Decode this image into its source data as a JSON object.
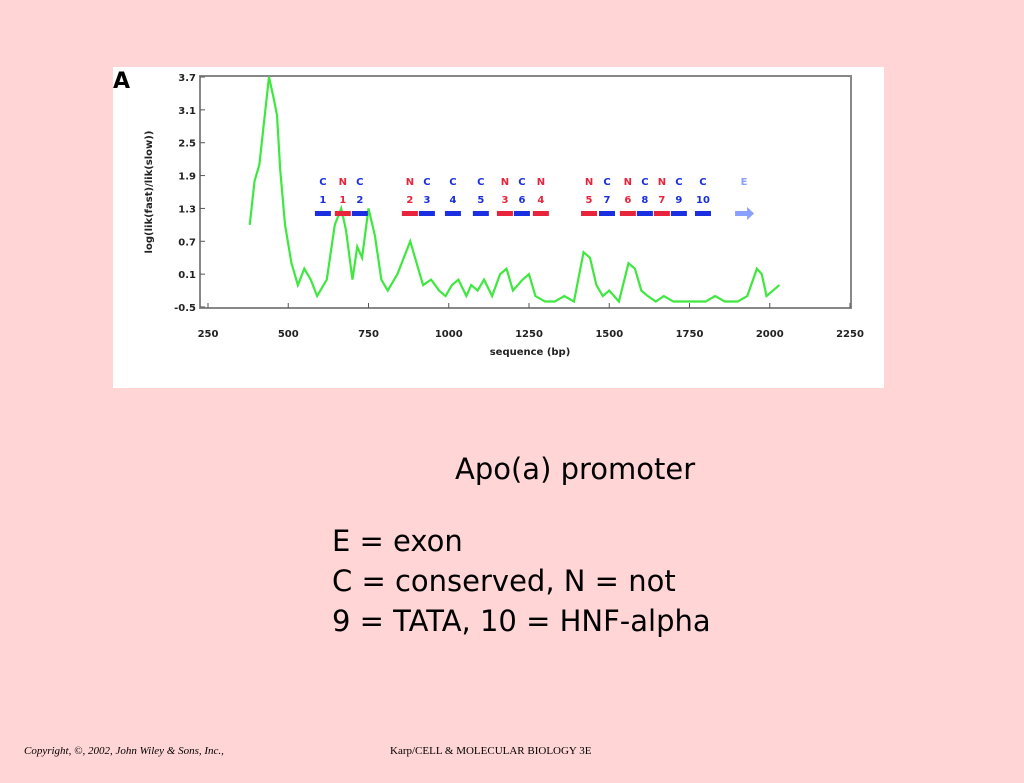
{
  "panel_label": "A",
  "chart_data": {
    "type": "line",
    "xlabel": "sequence (bp)",
    "ylabel": "log(lik(fast)/lik(slow))",
    "xlim": [
      250,
      2250
    ],
    "xticks": [
      250,
      500,
      750,
      1000,
      1250,
      1500,
      1750,
      2000,
      2250
    ],
    "ylim": [
      -0.5,
      3.7
    ],
    "yticks": [
      3.7,
      3.1,
      2.5,
      1.9,
      1.3,
      0.7,
      0.1,
      -0.5
    ],
    "color": "#3ee83e",
    "x": [
      380,
      395,
      410,
      425,
      440,
      455,
      465,
      475,
      490,
      510,
      530,
      550,
      570,
      590,
      620,
      645,
      665,
      680,
      700,
      715,
      730,
      750,
      770,
      790,
      810,
      840,
      860,
      880,
      900,
      920,
      945,
      970,
      990,
      1010,
      1030,
      1055,
      1070,
      1090,
      1110,
      1135,
      1160,
      1180,
      1200,
      1230,
      1250,
      1270,
      1300,
      1330,
      1360,
      1390,
      1420,
      1440,
      1460,
      1480,
      1500,
      1530,
      1560,
      1580,
      1600,
      1620,
      1645,
      1670,
      1700,
      1750,
      1800,
      1830,
      1860,
      1900,
      1930,
      1960,
      1975,
      1990,
      2010,
      2030
    ],
    "values": [
      1.0,
      1.8,
      2.1,
      2.9,
      3.7,
      3.3,
      3.0,
      2.0,
      1.0,
      0.3,
      -0.1,
      0.2,
      0.0,
      -0.3,
      0.0,
      1.0,
      1.3,
      0.9,
      0.0,
      0.6,
      0.4,
      1.3,
      0.8,
      0.0,
      -0.2,
      0.1,
      0.4,
      0.7,
      0.3,
      -0.1,
      0.0,
      -0.2,
      -0.3,
      -0.1,
      0.0,
      -0.3,
      -0.1,
      -0.2,
      0.0,
      -0.3,
      0.1,
      0.2,
      -0.2,
      0.0,
      0.1,
      -0.3,
      -0.4,
      -0.4,
      -0.3,
      -0.4,
      0.5,
      0.4,
      -0.1,
      -0.3,
      -0.2,
      -0.4,
      0.3,
      0.2,
      -0.2,
      -0.3,
      -0.4,
      -0.3,
      -0.4,
      -0.4,
      -0.4,
      -0.3,
      -0.4,
      -0.4,
      -0.3,
      0.2,
      0.1,
      -0.3,
      -0.2,
      -0.1
    ],
    "markers": [
      {
        "letter": "C",
        "number": "1",
        "color": "#1a2fe0",
        "x": 608
      },
      {
        "letter": "N",
        "number": "1",
        "color": "#e8243c",
        "x": 670
      },
      {
        "letter": "C",
        "number": "2",
        "color": "#1a2fe0",
        "x": 723
      },
      {
        "letter": "N",
        "number": "2",
        "color": "#e8243c",
        "x": 879
      },
      {
        "letter": "C",
        "number": "3",
        "color": "#1a2fe0",
        "x": 932
      },
      {
        "letter": "C",
        "number": "4",
        "color": "#1a2fe0",
        "x": 1013
      },
      {
        "letter": "C",
        "number": "5",
        "color": "#1a2fe0",
        "x": 1100
      },
      {
        "letter": "N",
        "number": "3",
        "color": "#e8243c",
        "x": 1175
      },
      {
        "letter": "C",
        "number": "6",
        "color": "#1a2fe0",
        "x": 1228
      },
      {
        "letter": "N",
        "number": "4",
        "color": "#e8243c",
        "x": 1287
      },
      {
        "letter": "N",
        "number": "5",
        "color": "#e8243c",
        "x": 1437
      },
      {
        "letter": "C",
        "number": "7",
        "color": "#1a2fe0",
        "x": 1493
      },
      {
        "letter": "N",
        "number": "6",
        "color": "#e8243c",
        "x": 1558
      },
      {
        "letter": "C",
        "number": "8",
        "color": "#1a2fe0",
        "x": 1611
      },
      {
        "letter": "N",
        "number": "7",
        "color": "#e8243c",
        "x": 1664
      },
      {
        "letter": "C",
        "number": "9",
        "color": "#1a2fe0",
        "x": 1717
      },
      {
        "letter": "C",
        "number": "10",
        "color": "#1a2fe0",
        "x": 1792
      },
      {
        "letter": "E",
        "color": "#8aa0ff",
        "x": 1920
      }
    ]
  },
  "caption": "Apo(a) promoter",
  "notes": [
    "E = exon",
    "C = conserved, N = not",
    "9 = TATA, 10 = HNF-alpha"
  ],
  "footer": {
    "copyright": "Copyright, ©, 2002, John Wiley & Sons, Inc.,",
    "book": "Karp/CELL & MOLECULAR BIOLOGY 3E"
  }
}
